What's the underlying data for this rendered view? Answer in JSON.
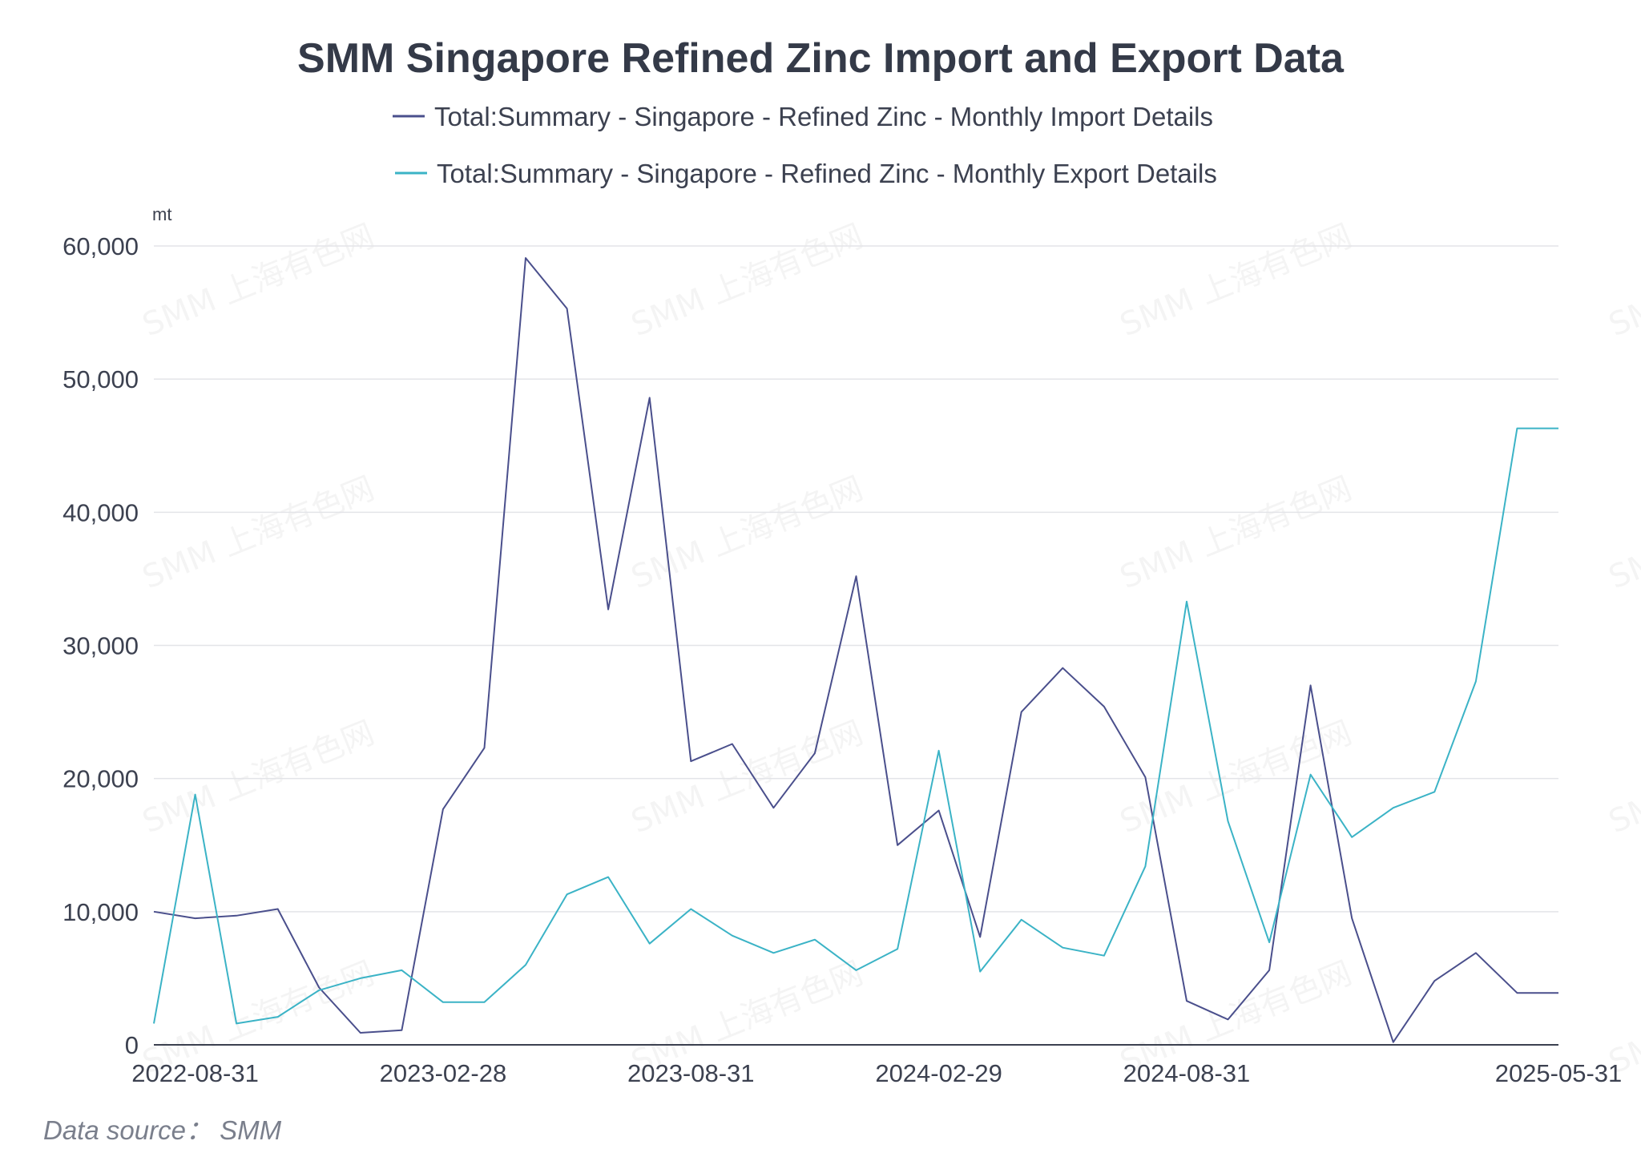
{
  "chart_data": {
    "type": "line",
    "title": "SMM Singapore Refined Zinc Import and Export Data",
    "unit": "mt",
    "ylim": [
      0,
      60000
    ],
    "yticks": [
      0,
      10000,
      20000,
      30000,
      40000,
      50000,
      60000
    ],
    "ytick_labels": [
      "0",
      "10,000",
      "20,000",
      "30,000",
      "40,000",
      "50,000",
      "60,000"
    ],
    "x": [
      "2022-07-31",
      "2022-08-31",
      "2022-09-30",
      "2022-10-31",
      "2022-11-30",
      "2022-12-31",
      "2023-01-31",
      "2023-02-28",
      "2023-03-31",
      "2023-04-30",
      "2023-05-31",
      "2023-06-30",
      "2023-07-31",
      "2023-08-31",
      "2023-09-30",
      "2023-10-31",
      "2023-11-30",
      "2023-12-31",
      "2024-01-31",
      "2024-02-29",
      "2024-03-31",
      "2024-04-30",
      "2024-05-31",
      "2024-06-30",
      "2024-07-31",
      "2024-08-31",
      "2024-09-30",
      "2024-10-31",
      "2024-11-30",
      "2024-12-31",
      "2025-01-31",
      "2025-02-28",
      "2025-03-31",
      "2025-04-30",
      "2025-05-31"
    ],
    "xtick_labels": [
      "2022-08-31",
      "2023-02-28",
      "2023-08-31",
      "2024-02-29",
      "2024-08-31",
      "2025-05-31"
    ],
    "grid": true,
    "legend_position": "top-center",
    "series": [
      {
        "name": "Total:Summary - Singapore - Refined Zinc - Monthly Import Details",
        "color": "#4a4f8c",
        "values": [
          10000,
          9500,
          9700,
          10200,
          4300,
          900,
          1100,
          17700,
          22300,
          59100,
          55300,
          32700,
          48600,
          21300,
          22600,
          17800,
          21900,
          35200,
          15000,
          17600,
          8100,
          25000,
          28300,
          25400,
          20100,
          3300,
          1900,
          5600,
          27000,
          9500,
          200,
          4800,
          6900,
          3900,
          3900
        ]
      },
      {
        "name": "Total:Summary - Singapore - Refined Zinc - Monthly Export Details",
        "color": "#3bb3c6",
        "values": [
          1600,
          18800,
          1600,
          2100,
          4100,
          5000,
          5600,
          3200,
          3200,
          6000,
          11300,
          12600,
          7600,
          10200,
          8200,
          6900,
          7900,
          5600,
          7200,
          22100,
          5500,
          9400,
          7300,
          6700,
          13400,
          33300,
          16800,
          7700,
          20300,
          15600,
          17800,
          19000,
          27300,
          46300,
          46300
        ]
      }
    ]
  },
  "watermark": "SMM 上海有色网",
  "source": "Data source： SMM"
}
